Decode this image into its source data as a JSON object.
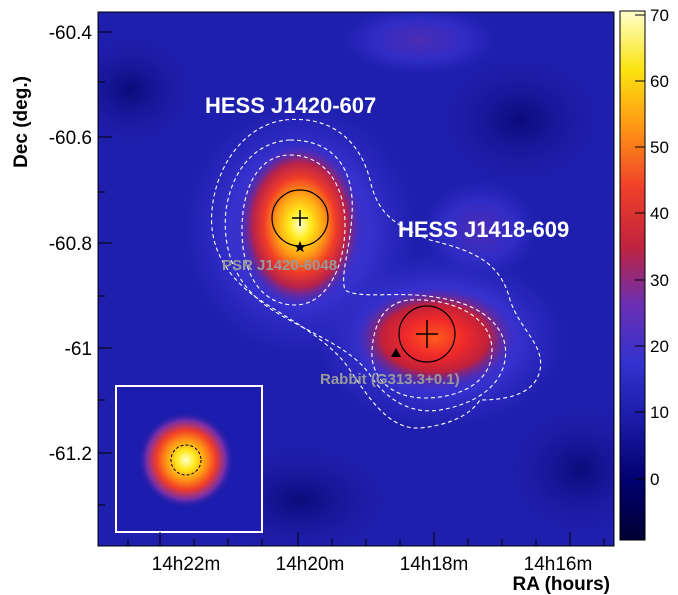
{
  "chart_data": {
    "type": "heatmap",
    "xlabel": "RA (hours)",
    "ylabel": "Dec (deg.)",
    "x_ticks": [
      "14h22m",
      "14h20m",
      "14h18m",
      "14h16m"
    ],
    "y_ticks": [
      "-60.4",
      "-60.6",
      "-60.8",
      "-61",
      "-61.2"
    ],
    "colorbar": {
      "ticks": [
        "70",
        "60",
        "50",
        "40",
        "30",
        "20",
        "10",
        "0"
      ],
      "range": [
        -9,
        71
      ],
      "colors": [
        "#000033",
        "#00006e",
        "#1a1aa6",
        "#3232cf",
        "#6a2fb3",
        "#c0233d",
        "#f0402a",
        "#ff9415",
        "#fbe410",
        "#ffffcc"
      ]
    },
    "sources": [
      {
        "label": "HESS J1420-607",
        "ra_min": 19.86,
        "dec": -60.75,
        "peak": 70
      },
      {
        "label": "HESS J1418-609",
        "ra_min": 18.21,
        "dec": -60.97,
        "peak": 45
      }
    ],
    "annotations": [
      {
        "label": "PSR J1420-6048",
        "marker": "star",
        "ra_min": 19.86,
        "dec": -60.8
      },
      {
        "label": "Rabbit (G313.3+0.1)",
        "marker": "triangle",
        "ra_min": 18.62,
        "dec": -61.01
      }
    ],
    "inset": "psf"
  }
}
